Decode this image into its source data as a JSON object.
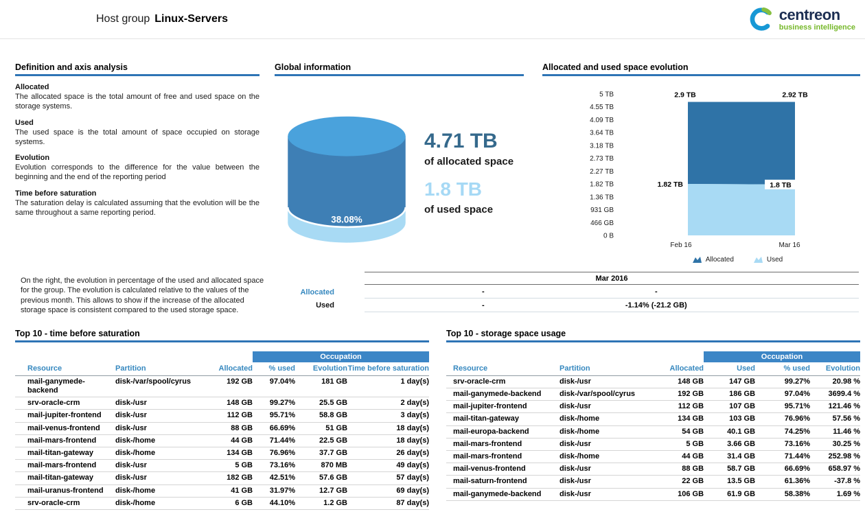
{
  "header": {
    "title_prefix": "Host group",
    "title_name": "Linux-Servers",
    "logo": {
      "name": "centreon",
      "tagline": "business intelligence"
    }
  },
  "colors": {
    "section_underline": "#2e74b5",
    "table_header_text": "#3688bf",
    "occupation_bg": "#3c86c6",
    "series_allocated": "#2f73a7",
    "series_used": "#a8daf4",
    "cylinder_top": "#4aa2dc",
    "cylinder_body": "#3e7fb5",
    "cylinder_used": "#a8daf4",
    "allocated_value_text": "#35698c",
    "logo_blue": "#1798d5",
    "logo_green": "#86bf3f",
    "brand_navy": "#1c2e52",
    "brand_green": "#76b82a"
  },
  "definitions": {
    "section_title": "Definition and axis analysis",
    "items": [
      {
        "term": "Allocated",
        "text": "The allocated space is the total amount of free and used space on the storage systems."
      },
      {
        "term": "Used",
        "text": "The used space is the total amount of space occupied on storage systems."
      },
      {
        "term": "Evolution",
        "text": "Evolution corresponds to the difference for the value between the beginning and the end of the reporting period"
      },
      {
        "term": "Time before saturation",
        "text": "The saturation delay is calculated assuming that the evolution will be the same throughout a same reporting period."
      }
    ],
    "note": "On the right, the evolution in percentage of the used and allocated space for the group. The evolution is calculated relative to the values of the previous month. This allows to show if the increase of the allocated storage space is consistent compared to the used storage space."
  },
  "global_info": {
    "section_title": "Global information",
    "used_percent": "38.08%",
    "allocated_value": "4.71 TB",
    "allocated_label": "of allocated space",
    "used_value": "1.8 TB",
    "used_label": "of used space"
  },
  "monthly_evolution": {
    "period": "Mar 2016",
    "rows": [
      {
        "label": "Allocated",
        "col1": "-",
        "col2": "-"
      },
      {
        "label": "Used",
        "col1": "-",
        "col2": "-1.14% (-21.2 GB)"
      }
    ]
  },
  "chart_data": [
    {
      "type": "area",
      "title": "Allocated and used space evolution",
      "stacked": true,
      "x": [
        "Feb 16",
        "Mar 16"
      ],
      "series": [
        {
          "name": "Allocated",
          "values_tb": [
            2.9,
            2.92
          ],
          "labels": [
            "2.9 TB",
            "2.92 TB"
          ],
          "color": "#2f73a7"
        },
        {
          "name": "Used",
          "values_tb": [
            1.82,
            1.8
          ],
          "labels": [
            "1.82 TB",
            "1.8 TB"
          ],
          "color": "#a8daf4"
        }
      ],
      "ylim_tb": [
        0,
        5
      ],
      "y_ticks": [
        "5 TB",
        "4.55 TB",
        "4.09 TB",
        "3.64 TB",
        "3.18 TB",
        "2.73 TB",
        "2.27 TB",
        "1.82 TB",
        "1.36 TB",
        "931 GB",
        "466 GB",
        "0 B"
      ],
      "legend_position": "bottom",
      "grid": false
    },
    {
      "type": "pie",
      "title": "Global information",
      "slices": [
        {
          "label": "used",
          "percent": 38.08
        },
        {
          "label": "free",
          "percent": 61.92
        }
      ],
      "center_label": "38.08%"
    }
  ],
  "top_saturation": {
    "section_title": "Top 10 - time before saturation",
    "occupation_header": "Occupation",
    "columns": [
      "Resource",
      "Partition",
      "Allocated",
      "% used",
      "Evolution",
      "Time before saturation"
    ],
    "rows": [
      [
        "mail-ganymede-backend",
        "disk-/var/spool/cyrus",
        "192 GB",
        "97.04%",
        "181 GB",
        "1 day(s)"
      ],
      [
        "srv-oracle-crm",
        "disk-/usr",
        "148 GB",
        "99.27%",
        "25.5 GB",
        "2 day(s)"
      ],
      [
        "mail-jupiter-frontend",
        "disk-/usr",
        "112 GB",
        "95.71%",
        "58.8 GB",
        "3 day(s)"
      ],
      [
        "mail-venus-frontend",
        "disk-/usr",
        "88 GB",
        "66.69%",
        "51 GB",
        "18 day(s)"
      ],
      [
        "mail-mars-frontend",
        "disk-/home",
        "44 GB",
        "71.44%",
        "22.5 GB",
        "18 day(s)"
      ],
      [
        "mail-titan-gateway",
        "disk-/home",
        "134 GB",
        "76.96%",
        "37.7 GB",
        "26 day(s)"
      ],
      [
        "mail-mars-frontend",
        "disk-/usr",
        "5 GB",
        "73.16%",
        "870 MB",
        "49 day(s)"
      ],
      [
        "mail-titan-gateway",
        "disk-/usr",
        "182 GB",
        "42.51%",
        "57.6 GB",
        "57 day(s)"
      ],
      [
        "mail-uranus-frontend",
        "disk-/home",
        "41 GB",
        "31.97%",
        "12.7 GB",
        "69 day(s)"
      ],
      [
        "srv-oracle-crm",
        "disk-/home",
        "6 GB",
        "44.10%",
        "1.2 GB",
        "87 day(s)"
      ]
    ]
  },
  "top_usage": {
    "section_title": "Top 10 - storage space usage",
    "occupation_header": "Occupation",
    "columns": [
      "Resource",
      "Partition",
      "Allocated",
      "Used",
      "% used",
      "Evolution"
    ],
    "rows": [
      [
        "srv-oracle-crm",
        "disk-/usr",
        "148 GB",
        "147 GB",
        "99.27%",
        "20.98 %"
      ],
      [
        "mail-ganymede-backend",
        "disk-/var/spool/cyrus",
        "192 GB",
        "186 GB",
        "97.04%",
        "3699.4 %"
      ],
      [
        "mail-jupiter-frontend",
        "disk-/usr",
        "112 GB",
        "107 GB",
        "95.71%",
        "121.46 %"
      ],
      [
        "mail-titan-gateway",
        "disk-/home",
        "134 GB",
        "103 GB",
        "76.96%",
        "57.56 %"
      ],
      [
        "mail-europa-backend",
        "disk-/home",
        "54 GB",
        "40.1 GB",
        "74.25%",
        "11.46 %"
      ],
      [
        "mail-mars-frontend",
        "disk-/usr",
        "5 GB",
        "3.66 GB",
        "73.16%",
        "30.25 %"
      ],
      [
        "mail-mars-frontend",
        "disk-/home",
        "44 GB",
        "31.4 GB",
        "71.44%",
        "252.98 %"
      ],
      [
        "mail-venus-frontend",
        "disk-/usr",
        "88 GB",
        "58.7 GB",
        "66.69%",
        "658.97 %"
      ],
      [
        "mail-saturn-frontend",
        "disk-/usr",
        "22 GB",
        "13.5 GB",
        "61.36%",
        "-37.8 %"
      ],
      [
        "mail-ganymede-backend",
        "disk-/usr",
        "106 GB",
        "61.9 GB",
        "58.38%",
        "1.69 %"
      ]
    ]
  }
}
